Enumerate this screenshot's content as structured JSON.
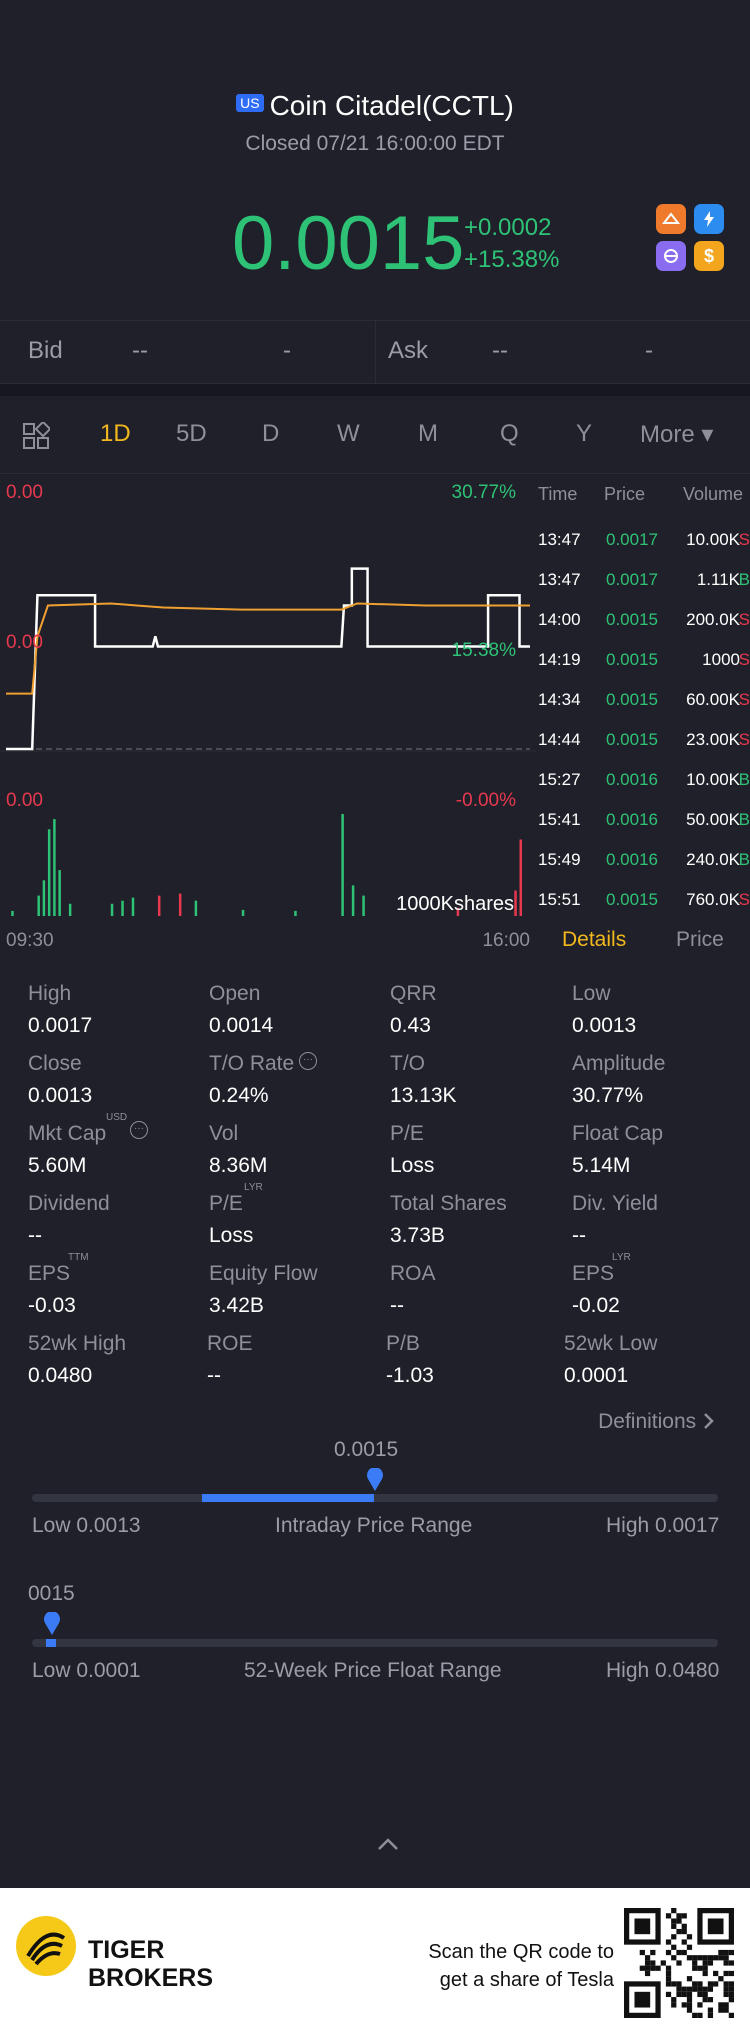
{
  "header": {
    "market_badge": "US",
    "title": "Coin Citadel(CCTL)",
    "status": "Closed 07/21 16:00:00 EDT",
    "price": "0.0015",
    "change": "+0.0002",
    "change_pct": "+15.38%",
    "icons": [
      "flame-app-icon",
      "lightning-app-icon",
      "swirl-app-icon",
      "dollar-app-icon"
    ]
  },
  "bidask": {
    "bid_label": "Bid",
    "bid_price": "--",
    "bid_size": "-",
    "ask_label": "Ask",
    "ask_price": "--",
    "ask_size": "-"
  },
  "tabs": [
    "1D",
    "5D",
    "D",
    "W",
    "M",
    "Q",
    "Y",
    "More ▾"
  ],
  "active_tab": "1D",
  "chart_labels": {
    "price_left_top": "0.00",
    "price_right_top": "30.77%",
    "price_left_mid": "0.00",
    "price_right_mid": "15.38%",
    "vol_left_top": "0.00",
    "vol_right_top": "-0.00%",
    "vol_unit": "1000Kshares",
    "time_start": "09:30",
    "time_end": "16:00"
  },
  "chart_data": {
    "type": "line",
    "x_range": [
      "09:30",
      "16:00"
    ],
    "y_range_pct": [
      0,
      30.77
    ],
    "series": [
      {
        "name": "Price",
        "color": "#ffffff",
        "points": [
          [
            0,
            1
          ],
          [
            0.05,
            1
          ],
          [
            0.06,
            0.25
          ],
          [
            0.17,
            0.25
          ],
          [
            0.17,
            0.5
          ],
          [
            0.28,
            0.5
          ],
          [
            0.285,
            0.45
          ],
          [
            0.29,
            0.5
          ],
          [
            0.64,
            0.5
          ],
          [
            0.645,
            0.3
          ],
          [
            0.66,
            0.3
          ],
          [
            0.66,
            0.12
          ],
          [
            0.69,
            0.12
          ],
          [
            0.69,
            0.5
          ],
          [
            0.92,
            0.5
          ],
          [
            0.92,
            0.25
          ],
          [
            0.98,
            0.25
          ],
          [
            0.98,
            0.5
          ],
          [
            1,
            0.5
          ]
        ]
      },
      {
        "name": "Average",
        "color": "#f0a030",
        "points": [
          [
            0,
            0.73
          ],
          [
            0.05,
            0.73
          ],
          [
            0.06,
            0.45
          ],
          [
            0.08,
            0.3
          ],
          [
            0.2,
            0.29
          ],
          [
            0.3,
            0.31
          ],
          [
            0.45,
            0.32
          ],
          [
            0.64,
            0.32
          ],
          [
            0.67,
            0.29
          ],
          [
            0.8,
            0.3
          ],
          [
            1,
            0.3
          ]
        ]
      }
    ],
    "volume_bars": [
      {
        "t": 0.01,
        "h": 0.05,
        "c": "g"
      },
      {
        "t": 0.06,
        "h": 0.2,
        "c": "g"
      },
      {
        "t": 0.07,
        "h": 0.35,
        "c": "g"
      },
      {
        "t": 0.08,
        "h": 0.85,
        "c": "g"
      },
      {
        "t": 0.09,
        "h": 0.95,
        "c": "g"
      },
      {
        "t": 0.1,
        "h": 0.45,
        "c": "g"
      },
      {
        "t": 0.12,
        "h": 0.12,
        "c": "g"
      },
      {
        "t": 0.2,
        "h": 0.12,
        "c": "g"
      },
      {
        "t": 0.22,
        "h": 0.15,
        "c": "g"
      },
      {
        "t": 0.24,
        "h": 0.18,
        "c": "g"
      },
      {
        "t": 0.29,
        "h": 0.2,
        "c": "r"
      },
      {
        "t": 0.33,
        "h": 0.22,
        "c": "r"
      },
      {
        "t": 0.36,
        "h": 0.15,
        "c": "g"
      },
      {
        "t": 0.45,
        "h": 0.06,
        "c": "g"
      },
      {
        "t": 0.55,
        "h": 0.05,
        "c": "g"
      },
      {
        "t": 0.64,
        "h": 1.0,
        "c": "g"
      },
      {
        "t": 0.66,
        "h": 0.3,
        "c": "g"
      },
      {
        "t": 0.68,
        "h": 0.2,
        "c": "g"
      },
      {
        "t": 0.86,
        "h": 0.08,
        "c": "r"
      },
      {
        "t": 0.97,
        "h": 0.25,
        "c": "r"
      },
      {
        "t": 0.98,
        "h": 0.75,
        "c": "r"
      }
    ]
  },
  "ticks": {
    "headers": [
      "Time",
      "Price",
      "Volume"
    ],
    "rows": [
      {
        "time": "13:47",
        "price": "0.0017",
        "vol": "10.00K",
        "side": "S"
      },
      {
        "time": "13:47",
        "price": "0.0017",
        "vol": "1.11K",
        "side": "B"
      },
      {
        "time": "14:00",
        "price": "0.0015",
        "vol": "200.0K",
        "side": "S"
      },
      {
        "time": "14:19",
        "price": "0.0015",
        "vol": "1000",
        "side": "S"
      },
      {
        "time": "14:34",
        "price": "0.0015",
        "vol": "60.00K",
        "side": "S"
      },
      {
        "time": "14:44",
        "price": "0.0015",
        "vol": "23.00K",
        "side": "S"
      },
      {
        "time": "15:27",
        "price": "0.0016",
        "vol": "10.00K",
        "side": "B"
      },
      {
        "time": "15:41",
        "price": "0.0016",
        "vol": "50.00K",
        "side": "B"
      },
      {
        "time": "15:49",
        "price": "0.0016",
        "vol": "240.0K",
        "side": "B"
      },
      {
        "time": "15:51",
        "price": "0.0015",
        "vol": "760.0K",
        "side": "S"
      }
    ]
  },
  "detail_tabs": {
    "details": "Details",
    "price": "Price"
  },
  "stats": [
    [
      {
        "label": "High",
        "value": "0.0017"
      },
      {
        "label": "Open",
        "value": "0.0014"
      },
      {
        "label": "QRR",
        "value": "0.43"
      },
      {
        "label": "Low",
        "value": "0.0013"
      }
    ],
    [
      {
        "label": "Close",
        "value": "0.0013"
      },
      {
        "label": "T/O Rate",
        "value": "0.24%"
      },
      {
        "label": "T/O",
        "value": "13.13K"
      },
      {
        "label": "Amplitude",
        "value": "30.77%"
      }
    ],
    [
      {
        "label": "Mkt Cap",
        "value": "5.60M"
      },
      {
        "label": "Vol",
        "value": "8.36M"
      },
      {
        "label": "P/E",
        "value": "Loss"
      },
      {
        "label": "Float Cap",
        "value": "5.14M"
      }
    ],
    [
      {
        "label": "Dividend",
        "value": "--"
      },
      {
        "label": "P/E",
        "value": "Loss"
      },
      {
        "label": "Total Shares",
        "value": "3.73B"
      },
      {
        "label": "Div. Yield",
        "value": "--"
      }
    ],
    [
      {
        "label": "EPS",
        "value": "-0.03"
      },
      {
        "label": "Equity Flow",
        "value": "3.42B"
      },
      {
        "label": "ROA",
        "value": "--"
      },
      {
        "label": "EPS",
        "value": "-0.02"
      }
    ],
    [
      {
        "label": "52wk High",
        "value": "0.0480"
      },
      {
        "label": "ROE",
        "value": "--"
      },
      {
        "label": "P/B",
        "value": "-1.03"
      },
      {
        "label": "52wk Low",
        "value": "0.0001"
      }
    ]
  ],
  "superscripts": {
    "mktcap": "USD",
    "pe_lyr": "LYR",
    "eps_ttm": "TTM",
    "eps_lyr": "LYR"
  },
  "definitions_link": "Definitions",
  "intraday": {
    "current": "0.0015",
    "low": "Low 0.0013",
    "title": "Intraday Price Range",
    "high": "High 0.0017",
    "fill_start": 0.0,
    "fill_end": 0.5
  },
  "week52": {
    "current": "0015",
    "low": "Low 0.0001",
    "title": "52-Week Price Float Range",
    "high": "High 0.0480",
    "position": 0.03
  },
  "footer": {
    "brand_line1": "TIGER",
    "brand_line2": "BROKERS",
    "promo_line1": "Scan the QR code to",
    "promo_line2": "get a share of Tesla"
  },
  "colors": {
    "up": "#2ec276",
    "down": "#e8384f",
    "accent": "#f2b81d",
    "blue": "#3b7cf6"
  }
}
